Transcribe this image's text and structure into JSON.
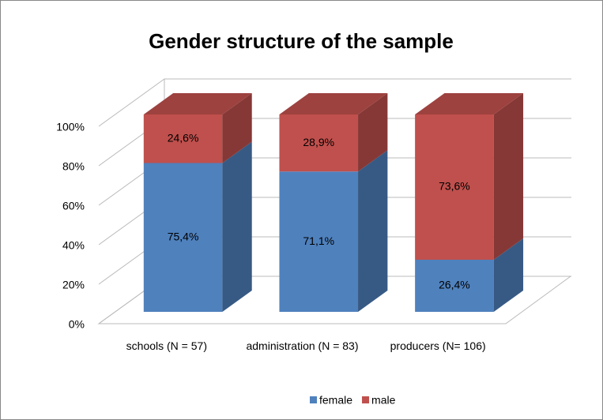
{
  "chart_data": {
    "type": "bar3d_stacked",
    "title": "Gender structure of the sample",
    "categories": [
      "schools (N = 57)",
      "administration (N = 83)",
      "producers (N= 106)"
    ],
    "series": [
      {
        "name": "female",
        "color": "#4f81bd",
        "values": [
          75.4,
          71.1,
          26.4
        ],
        "value_labels": [
          "75,4%",
          "71,1%",
          "26,4%"
        ]
      },
      {
        "name": "male",
        "color": "#c0504d",
        "values": [
          24.6,
          28.9,
          73.6
        ],
        "value_labels": [
          "24,6%",
          "28,9%",
          "73,6%"
        ]
      }
    ],
    "ylim": [
      0,
      100
    ],
    "yticks": [
      {
        "value": 0,
        "label": "0%"
      },
      {
        "value": 20,
        "label": "20%"
      },
      {
        "value": 40,
        "label": "40%"
      },
      {
        "value": 60,
        "label": "60%"
      },
      {
        "value": 80,
        "label": "80%"
      },
      {
        "value": 100,
        "label": "100%"
      }
    ],
    "grid": true,
    "legend": "bottom"
  }
}
